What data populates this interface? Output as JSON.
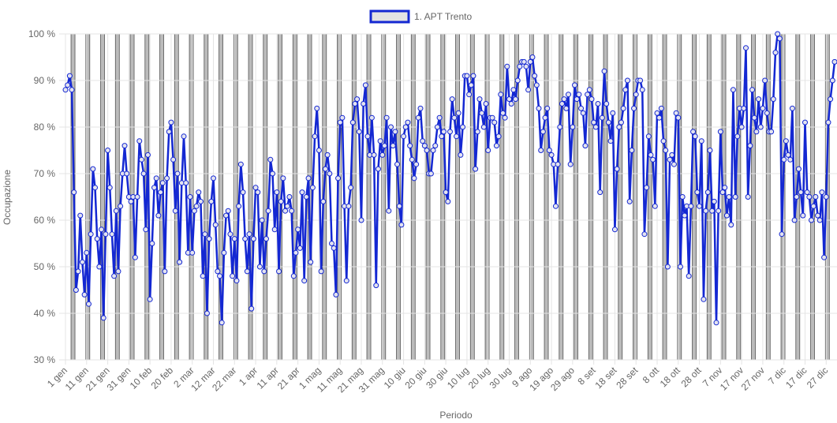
{
  "chart_data": {
    "type": "line",
    "x_label": "Periodo",
    "y_label": "Occupazione",
    "categories": [
      "1 gen",
      null,
      null,
      null,
      null,
      null,
      null,
      null,
      null,
      null,
      "11 gen",
      null,
      null,
      null,
      null,
      null,
      null,
      null,
      null,
      null,
      "21 gen",
      null,
      null,
      null,
      null,
      null,
      null,
      null,
      null,
      null,
      "31 gen",
      null,
      null,
      null,
      null,
      null,
      null,
      null,
      null,
      null,
      "10 feb",
      null,
      null,
      null,
      null,
      null,
      null,
      null,
      null,
      null,
      "20 feb",
      null,
      null,
      null,
      null,
      null,
      null,
      null,
      null,
      null,
      "2 mar",
      null,
      null,
      null,
      null,
      null,
      null,
      null,
      null,
      null,
      "12 mar",
      null,
      null,
      null,
      null,
      null,
      null,
      null,
      null,
      null,
      "22 mar",
      null,
      null,
      null,
      null,
      null,
      null,
      null,
      null,
      null,
      "1 apr",
      null,
      null,
      null,
      null,
      null,
      null,
      null,
      null,
      null,
      "11 apr",
      null,
      null,
      null,
      null,
      null,
      null,
      null,
      null,
      null,
      "21 apr",
      null,
      null,
      null,
      null,
      null,
      null,
      null,
      null,
      null,
      "1 mag",
      null,
      null,
      null,
      null,
      null,
      null,
      null,
      null,
      null,
      "11 mag",
      null,
      null,
      null,
      null,
      null,
      null,
      null,
      null,
      null,
      "21 mag",
      null,
      null,
      null,
      null,
      null,
      null,
      null,
      null,
      null,
      "31 mag",
      null,
      null,
      null,
      null,
      null,
      null,
      null,
      null,
      null,
      "10 giu",
      null,
      null,
      null,
      null,
      null,
      null,
      null,
      null,
      null,
      "20 giu",
      null,
      null,
      null,
      null,
      null,
      null,
      null,
      null,
      null,
      "30 giu",
      null,
      null,
      null,
      null,
      null,
      null,
      null,
      null,
      null,
      "10 lug",
      null,
      null,
      null,
      null,
      null,
      null,
      null,
      null,
      null,
      "20 lug",
      null,
      null,
      null,
      null,
      null,
      null,
      null,
      null,
      null,
      "30 lug",
      null,
      null,
      null,
      null,
      null,
      null,
      null,
      null,
      null,
      "9 ago",
      null,
      null,
      null,
      null,
      null,
      null,
      null,
      null,
      null,
      "19 ago",
      null,
      null,
      null,
      null,
      null,
      null,
      null,
      null,
      null,
      "29 ago",
      null,
      null,
      null,
      null,
      null,
      null,
      null,
      null,
      null,
      "8 set",
      null,
      null,
      null,
      null,
      null,
      null,
      null,
      null,
      null,
      "18 set",
      null,
      null,
      null,
      null,
      null,
      null,
      null,
      null,
      null,
      "28 set",
      null,
      null,
      null,
      null,
      null,
      null,
      null,
      null,
      null,
      "8 ott",
      null,
      null,
      null,
      null,
      null,
      null,
      null,
      null,
      null,
      "18 ott",
      null,
      null,
      null,
      null,
      null,
      null,
      null,
      null,
      null,
      "28 ott",
      null,
      null,
      null,
      null,
      null,
      null,
      null,
      null,
      null,
      "7 nov",
      null,
      null,
      null,
      null,
      null,
      null,
      null,
      null,
      null,
      "17 nov",
      null,
      null,
      null,
      null,
      null,
      null,
      null,
      null,
      null,
      "27 nov",
      null,
      null,
      null,
      null,
      null,
      null,
      null,
      null,
      null,
      "7 dic",
      null,
      null,
      null,
      null,
      null,
      null,
      null,
      null,
      null,
      "17 dic",
      null,
      null,
      null,
      null,
      null,
      null,
      null,
      null,
      null,
      "27 dic",
      null,
      null,
      null,
      null
    ],
    "series": [
      {
        "name": "1. APT Trento",
        "color": "#1428d2",
        "values": [
          88,
          89,
          91,
          88,
          66,
          45,
          49,
          61,
          51,
          44,
          53,
          42,
          57,
          71,
          67,
          56,
          50,
          58,
          39,
          57,
          75,
          67,
          57,
          48,
          62,
          49,
          63,
          70,
          76,
          70,
          65,
          64,
          65,
          52,
          65,
          77,
          73,
          70,
          58,
          74,
          43,
          55,
          67,
          69,
          61,
          66,
          68,
          49,
          69,
          79,
          81,
          73,
          62,
          70,
          51,
          68,
          78,
          68,
          53,
          65,
          53,
          62,
          63,
          66,
          64,
          48,
          57,
          40,
          56,
          64,
          69,
          59,
          49,
          48,
          38,
          53,
          61,
          62,
          57,
          48,
          56,
          47,
          63,
          72,
          66,
          56,
          49,
          57,
          41,
          56,
          67,
          66,
          50,
          60,
          49,
          56,
          62,
          73,
          70,
          58,
          66,
          49,
          64,
          69,
          62,
          63,
          65,
          62,
          48,
          53,
          58,
          54,
          66,
          47,
          65,
          69,
          51,
          67,
          78,
          84,
          75,
          49,
          64,
          71,
          74,
          70,
          55,
          54,
          44,
          69,
          81,
          82,
          63,
          47,
          63,
          67,
          81,
          85,
          86,
          79,
          60,
          85,
          89,
          78,
          74,
          82,
          74,
          46,
          71,
          77,
          74,
          76,
          82,
          62,
          80,
          76,
          79,
          72,
          63,
          59,
          78,
          80,
          81,
          76,
          73,
          69,
          72,
          82,
          84,
          77,
          76,
          75,
          70,
          70,
          75,
          76,
          80,
          82,
          78,
          79,
          66,
          64,
          79,
          86,
          82,
          78,
          83,
          74,
          80,
          91,
          91,
          87,
          89,
          91,
          71,
          79,
          86,
          83,
          80,
          85,
          75,
          82,
          82,
          81,
          76,
          78,
          87,
          83,
          82,
          93,
          86,
          85,
          88,
          86,
          90,
          93,
          94,
          94,
          93,
          88,
          94,
          95,
          91,
          89,
          84,
          75,
          79,
          82,
          84,
          75,
          74,
          72,
          63,
          72,
          80,
          85,
          86,
          84,
          87,
          72,
          80,
          89,
          86,
          87,
          84,
          83,
          76,
          87,
          88,
          86,
          81,
          80,
          85,
          66,
          82,
          92,
          85,
          81,
          77,
          83,
          58,
          71,
          80,
          81,
          84,
          88,
          90,
          64,
          75,
          84,
          87,
          90,
          90,
          88,
          57,
          67,
          78,
          74,
          73,
          63,
          83,
          82,
          84,
          77,
          75,
          50,
          73,
          74,
          72,
          83,
          82,
          50,
          65,
          61,
          63,
          48,
          63,
          79,
          78,
          66,
          63,
          77,
          43,
          62,
          66,
          75,
          62,
          64,
          38,
          62,
          79,
          66,
          67,
          61,
          65,
          59,
          88,
          65,
          78,
          84,
          80,
          84,
          97,
          65,
          76,
          88,
          82,
          79,
          86,
          80,
          84,
          90,
          83,
          79,
          79,
          86,
          96,
          100,
          99,
          57,
          73,
          77,
          74,
          73,
          84,
          60,
          65,
          71,
          66,
          61,
          81,
          66,
          65,
          60,
          63,
          65,
          61,
          60,
          66,
          52,
          65,
          81,
          86,
          90,
          94
        ]
      }
    ],
    "ylim": [
      30,
      100
    ],
    "yticks": [
      {
        "value": 30,
        "label": "30 %"
      },
      {
        "value": 40,
        "label": "40 %"
      },
      {
        "value": 50,
        "label": "50 %"
      },
      {
        "value": 60,
        "label": "60 %"
      },
      {
        "value": 70,
        "label": "70 %"
      },
      {
        "value": 80,
        "label": "80 %"
      },
      {
        "value": 90,
        "label": "90 %"
      },
      {
        "value": 100,
        "label": "100 %"
      }
    ],
    "grid": true
  }
}
